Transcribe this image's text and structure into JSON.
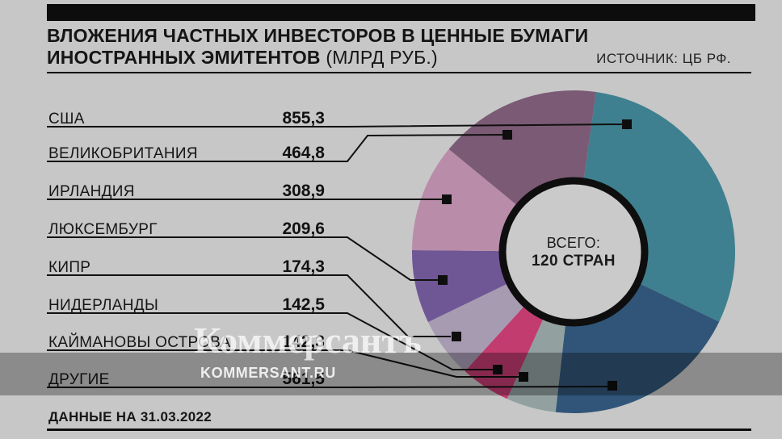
{
  "header": {
    "title_line1": "ВЛОЖЕНИЯ ЧАСТНЫХ ИНВЕСТОРОВ В ЦЕННЫЕ БУМАГИ",
    "title_line2_bold": "ИНОСТРАННЫХ ЭМИТЕНТОВ",
    "title_line2_regular": " (МЛРД РУБ.)",
    "source": "ИСТОЧНИК: ЦБ РФ."
  },
  "chart_data": {
    "type": "pie",
    "title": "Вложения частных инвесторов в ценные бумаги иностранных эмитентов",
    "unit": "млрд руб.",
    "categories": [
      "США",
      "ВЕЛИКОБРИТАНИЯ",
      "ИРЛАНДИЯ",
      "ЛЮКСЕМБУРГ",
      "КИПР",
      "НИДЕРЛАНДЫ",
      "КАЙМАНОВЫ ОСТРОВА",
      "ДРУГИЕ"
    ],
    "values": [
      855.3,
      464.8,
      308.9,
      209.6,
      174.3,
      142.5,
      142.3,
      561.5
    ],
    "value_labels": [
      "855,3",
      "464,8",
      "308,9",
      "209,6",
      "174,3",
      "142,5",
      "142,3",
      "561,5"
    ],
    "colors": [
      "#3E8090",
      "#7B5A75",
      "#B98CA9",
      "#6F5795",
      "#A79BB2",
      "#C23C70",
      "#93A0A0",
      "#315578"
    ],
    "center_label_line1": "ВСЕГО:",
    "center_label_line2": "120 СТРАН",
    "donut": true,
    "legend_position": "left",
    "start_angle_deg": 8,
    "clockwise_index_order": [
      0,
      7,
      6,
      5,
      4,
      3,
      2,
      1
    ],
    "hole_fill": "#cacaca",
    "ring_color": "#0e0e0e",
    "line_color": "#111111"
  },
  "legend": {
    "items": [
      {
        "label": "США",
        "value": "855,3"
      },
      {
        "label": "ВЕЛИКОБРИТАНИЯ",
        "value": "464,8"
      },
      {
        "label": "ИРЛАНДИЯ",
        "value": "308,9"
      },
      {
        "label": "ЛЮКСЕМБУРГ",
        "value": "209,6"
      },
      {
        "label": "КИПР",
        "value": "174,3"
      },
      {
        "label": "НИДЕРЛАНДЫ",
        "value": "142,5"
      },
      {
        "label": "КАЙМАНОВЫ ОСТРОВА",
        "value": "142,3"
      },
      {
        "label": "ДРУГИЕ",
        "value": "561,5"
      }
    ]
  },
  "watermark": {
    "main": "Коммерсантъ",
    "sub": "KOMMERSANT.RU"
  },
  "footer": {
    "note": "ДАННЫЕ НА 31.03.2022"
  }
}
